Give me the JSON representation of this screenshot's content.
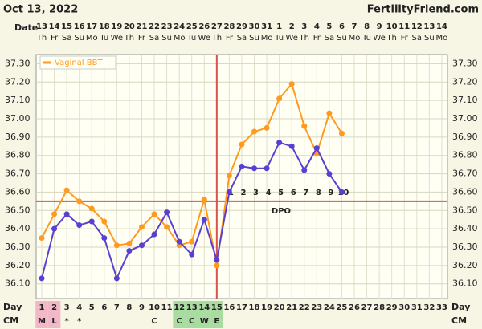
{
  "chart_data": {
    "type": "line",
    "title": "Oct 13, 2022",
    "site": "FertilityFriend.com",
    "date_label": "Date",
    "dates": [
      "13",
      "14",
      "15",
      "16",
      "17",
      "18",
      "19",
      "20",
      "21",
      "22",
      "23",
      "24",
      "25",
      "26",
      "27",
      "28",
      "29",
      "30",
      "31",
      "1",
      "2",
      "3",
      "4",
      "5",
      "6",
      "7",
      "8",
      "9",
      "10",
      "11",
      "12",
      "13",
      "14"
    ],
    "weekdays": [
      "Th",
      "Fr",
      "Sa",
      "Su",
      "Mo",
      "Tu",
      "We",
      "Th",
      "Fr",
      "Sa",
      "Su",
      "Mo",
      "Tu",
      "We",
      "Th",
      "Fr",
      "Sa",
      "Su",
      "Mo",
      "Tu",
      "We",
      "Th",
      "Fr",
      "Sa",
      "Su",
      "Mo",
      "Tu",
      "We",
      "Th",
      "Fr",
      "Sa",
      "Su",
      "Mo"
    ],
    "day_label": "Day",
    "days": [
      1,
      2,
      3,
      4,
      5,
      6,
      7,
      8,
      9,
      10,
      11,
      12,
      13,
      14,
      15,
      16,
      17,
      18,
      19,
      20,
      21,
      22,
      23,
      24,
      25,
      26,
      27,
      28,
      29,
      30,
      31,
      32,
      33
    ],
    "cm_label": "CM",
    "cm": [
      "M",
      "L",
      "*",
      "*",
      null,
      null,
      null,
      null,
      null,
      "C",
      null,
      "C",
      "C",
      "W",
      "E",
      null,
      null,
      null,
      null,
      null,
      null,
      null,
      null,
      null,
      null,
      null,
      null,
      null,
      null,
      null,
      null,
      null,
      null
    ],
    "period_days": [
      1,
      2
    ],
    "fertile_days": [
      12,
      13,
      14,
      15
    ],
    "series": [
      {
        "name": "Vaginal BBT",
        "color": "#ff9a1f",
        "values": [
          36.35,
          36.48,
          36.61,
          36.55,
          36.51,
          36.44,
          36.31,
          36.32,
          36.41,
          36.48,
          36.41,
          36.31,
          36.33,
          36.56,
          36.2,
          36.69,
          36.86,
          36.93,
          36.95,
          37.11,
          37.19,
          36.96,
          36.81,
          37.03,
          36.92,
          null,
          null,
          null,
          null,
          null,
          null,
          null,
          null
        ]
      },
      {
        "color": "#5a3fd0",
        "values": [
          36.13,
          36.4,
          36.48,
          36.42,
          36.44,
          36.35,
          36.13,
          36.28,
          36.31,
          36.37,
          36.49,
          36.33,
          36.26,
          36.45,
          36.23,
          36.6,
          36.74,
          36.73,
          36.73,
          36.87,
          36.85,
          36.72,
          36.84,
          36.7,
          36.6,
          null,
          null,
          null,
          null,
          null,
          null,
          null,
          null
        ]
      }
    ],
    "coverline": 36.55,
    "ovulation_day": 15,
    "dpo_label": "DPO",
    "dpo": [
      null,
      null,
      null,
      null,
      null,
      null,
      null,
      null,
      null,
      null,
      null,
      null,
      null,
      null,
      null,
      1,
      2,
      3,
      4,
      5,
      6,
      7,
      8,
      9,
      10,
      null,
      null,
      null,
      null,
      null,
      null,
      null,
      null
    ],
    "ylim": [
      36.02,
      37.35
    ],
    "yticks": [
      {
        "value": 36.1,
        "label": "36.10"
      },
      {
        "value": 36.2,
        "label": "36.20"
      },
      {
        "value": 36.3,
        "label": "36.30"
      },
      {
        "value": 36.4,
        "label": "36.40"
      },
      {
        "value": 36.5,
        "label": "36.50"
      },
      {
        "value": 36.6,
        "label": "36.60"
      },
      {
        "value": 36.7,
        "label": "36.70"
      },
      {
        "value": 36.8,
        "label": "36.80"
      },
      {
        "value": 36.9,
        "label": "36.90"
      },
      {
        "value": 37.0,
        "label": "37.00"
      },
      {
        "value": 37.1,
        "label": "37.10"
      },
      {
        "value": 37.2,
        "label": "37.20"
      },
      {
        "value": 37.3,
        "label": "37.30"
      }
    ],
    "grid": true,
    "legend": "top-left"
  }
}
